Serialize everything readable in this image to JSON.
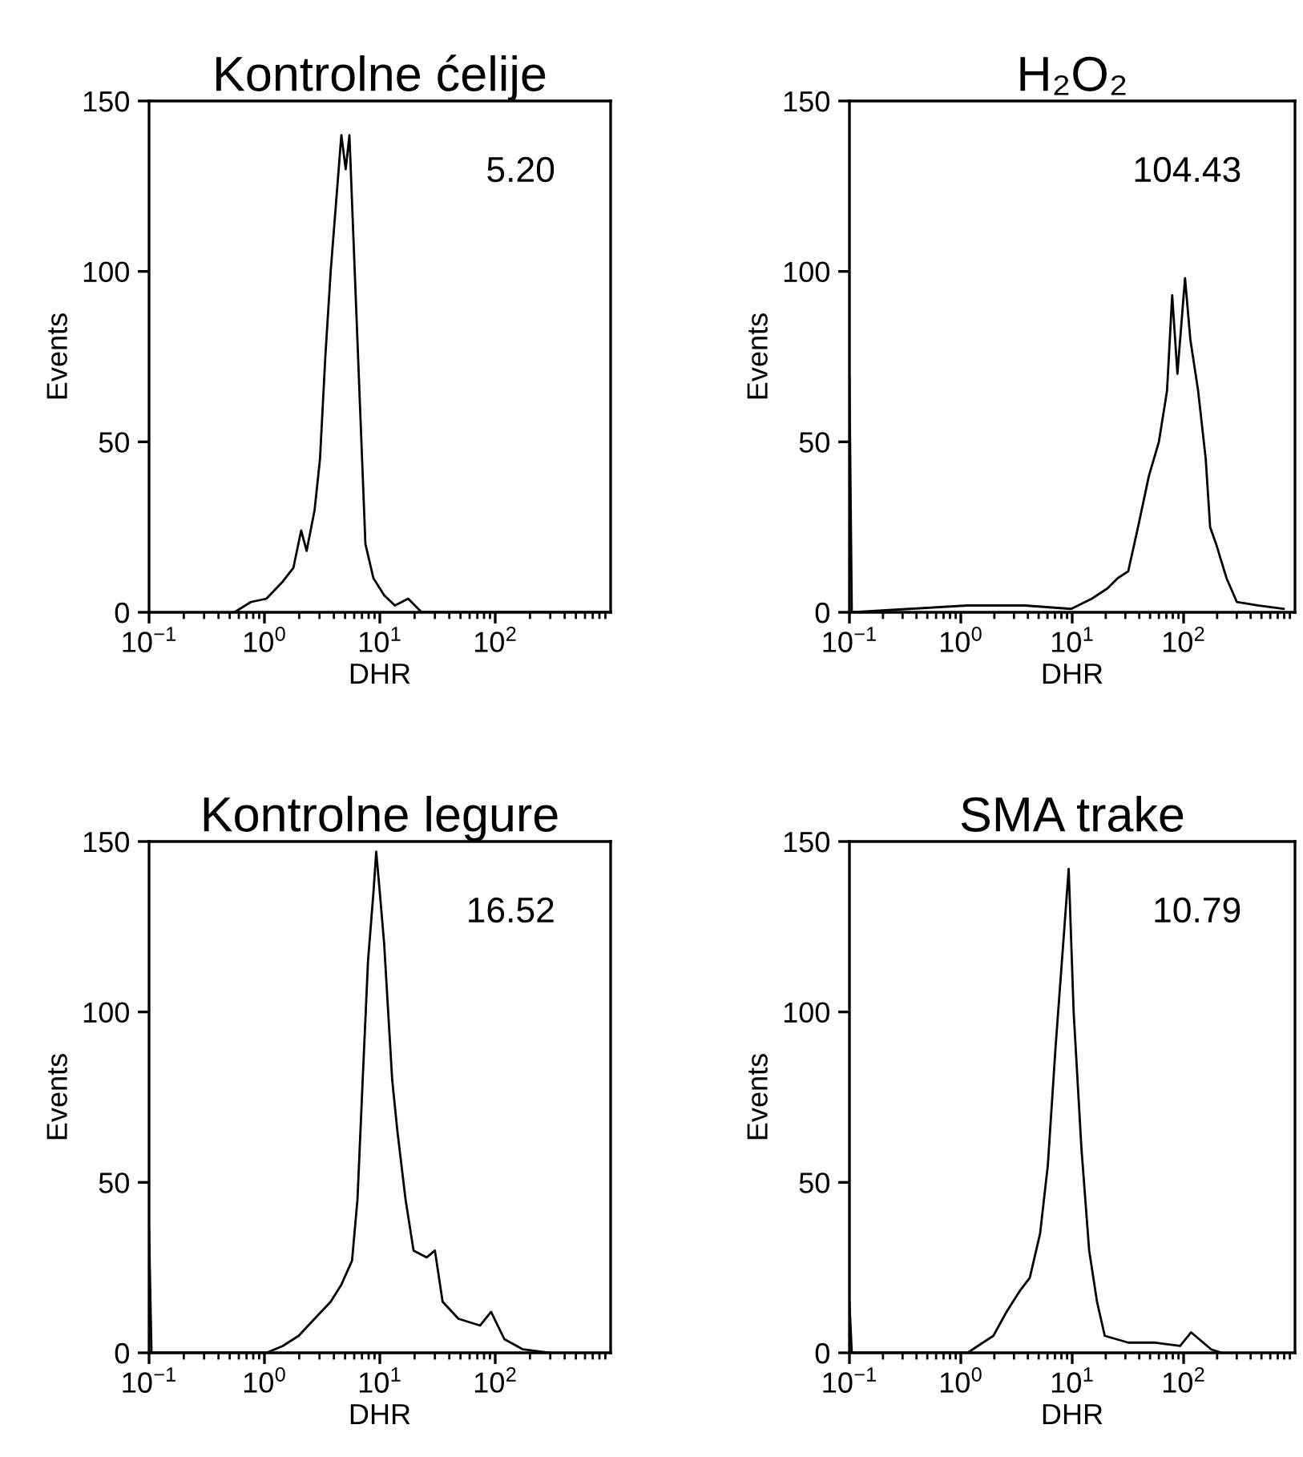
{
  "chart_data": [
    {
      "type": "line",
      "title": "Kontrolne ćelije",
      "xlabel": "DHR",
      "ylabel": "Events",
      "log": "x",
      "xlim": [
        0.1,
        1000
      ],
      "xticks": [
        {
          "value": 0.1,
          "label": "10$^{−1}$"
        },
        {
          "value": 1,
          "label": "10$^{0}$"
        },
        {
          "value": 10,
          "label": "10$^{1}$"
        },
        {
          "value": 100,
          "label": "10$^{2}$"
        }
      ],
      "ylim": [
        0,
        150
      ],
      "yticks": [
        0,
        50,
        100,
        150
      ],
      "grid": false,
      "annotations": [
        "5.20"
      ],
      "series": [
        {
          "color": "#000000",
          "x": [
            0.55,
            0.76,
            1.04,
            1.44,
            1.78,
            2.08,
            2.32,
            2.72,
            3.03,
            3.37,
            3.75,
            4.17,
            4.64,
            5.06,
            5.45,
            6.06,
            6.74,
            7.5,
            8.8,
            10.9,
            13.5,
            17.6,
            23,
            950
          ],
          "values": [
            0,
            3,
            4,
            9,
            13,
            24,
            18,
            30,
            45,
            75,
            100,
            120,
            140,
            130,
            140,
            100,
            60,
            20,
            10,
            5,
            2,
            4,
            0,
            0
          ]
        }
      ]
    },
    {
      "type": "line",
      "title": "H₂O₂",
      "xlabel": "DHR",
      "ylabel": "Events",
      "log": "x",
      "xlim": [
        0.1,
        1000
      ],
      "xticks": [
        {
          "value": 0.1,
          "label": "10$^{−1}$"
        },
        {
          "value": 1,
          "label": "10$^{0}$"
        },
        {
          "value": 10,
          "label": "10$^{1}$"
        },
        {
          "value": 100,
          "label": "10$^{2}$"
        }
      ],
      "ylim": [
        0,
        150
      ],
      "yticks": [
        0,
        50,
        100,
        150
      ],
      "grid": false,
      "annotations": [
        "104.43"
      ],
      "series": [
        {
          "color": "#000000",
          "x": [
            0.1,
            0.105,
            1.15,
            3.73,
            9.8,
            15,
            20.7,
            25.6,
            31.8,
            39,
            48.8,
            60,
            71,
            79,
            88,
            103,
            115,
            135,
            158,
            173,
            196,
            243,
            301,
            462,
            790
          ],
          "values": [
            69,
            0,
            2,
            2,
            1,
            4,
            7,
            10,
            12,
            25,
            40,
            50,
            65,
            93,
            70,
            98,
            80,
            65,
            45,
            25,
            20,
            10,
            3,
            2,
            1
          ]
        }
      ]
    },
    {
      "type": "line",
      "title": "Kontrolne legure",
      "xlabel": "DHR",
      "ylabel": "Events",
      "log": "x",
      "xlim": [
        0.1,
        1000
      ],
      "xticks": [
        {
          "value": 0.1,
          "label": "10$^{−1}$"
        },
        {
          "value": 1,
          "label": "10$^{0}$"
        },
        {
          "value": 10,
          "label": "10$^{1}$"
        },
        {
          "value": 100,
          "label": "10$^{2}$"
        }
      ],
      "ylim": [
        0,
        150
      ],
      "yticks": [
        0,
        50,
        100,
        150
      ],
      "grid": false,
      "annotations": [
        "16.52"
      ],
      "series": [
        {
          "color": "#000000",
          "x": [
            0.1,
            0.105,
            1.04,
            1.44,
            1.98,
            2.72,
            3.75,
            4.64,
            5.74,
            6.4,
            7.1,
            7.9,
            8.8,
            9.3,
            10,
            10.9,
            12.8,
            14.2,
            16.7,
            19.6,
            25.5,
            30,
            35,
            48,
            74,
            92,
            120,
            174,
            297
          ],
          "values": [
            36,
            0,
            0,
            2,
            5,
            10,
            15,
            20,
            27,
            45,
            80,
            115,
            135,
            147,
            135,
            120,
            80,
            65,
            45,
            30,
            28,
            30,
            15,
            10,
            8,
            12,
            4,
            1,
            0
          ]
        }
      ]
    },
    {
      "type": "line",
      "title": "SMA trake",
      "xlabel": "DHR",
      "ylabel": "Events",
      "log": "x",
      "xlim": [
        0.1,
        1000
      ],
      "xticks": [
        {
          "value": 0.1,
          "label": "10$^{−1}$"
        },
        {
          "value": 1,
          "label": "10$^{0}$"
        },
        {
          "value": 10,
          "label": "10$^{1}$"
        },
        {
          "value": 100,
          "label": "10$^{2}$"
        }
      ],
      "ylim": [
        0,
        150
      ],
      "yticks": [
        0,
        50,
        100,
        150
      ],
      "grid": false,
      "annotations": [
        "10.79"
      ],
      "series": [
        {
          "color": "#000000",
          "x": [
            0.1,
            0.105,
            1.15,
            1.42,
            1.96,
            2.57,
            3.36,
            4.16,
            5.15,
            6.04,
            7.1,
            8.3,
            9.3,
            10.3,
            12.1,
            14.2,
            16.7,
            19.6,
            31.8,
            54,
            93,
            117,
            177,
            219
          ],
          "values": [
            15,
            0,
            0,
            2,
            5,
            12,
            18,
            22,
            35,
            55,
            90,
            120,
            142,
            100,
            60,
            30,
            15,
            5,
            3,
            3,
            2,
            6,
            1,
            0
          ]
        }
      ]
    }
  ]
}
